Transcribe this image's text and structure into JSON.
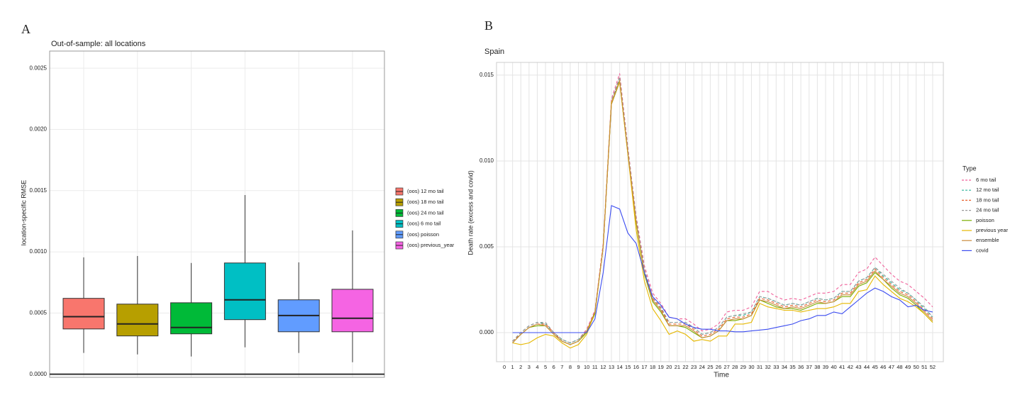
{
  "panels": [
    "A",
    "B"
  ],
  "chart_data": [
    {
      "type": "box",
      "title": "Out-of-sample: all locations",
      "ylabel": "location-specific RMSE",
      "ylim": [
        -2.5e-05,
        0.00264
      ],
      "yticks": [
        {
          "value": 0,
          "label": "0.0000"
        },
        {
          "value": 0.0005,
          "label": "0.0005"
        },
        {
          "value": 0.001,
          "label": "0.0010"
        },
        {
          "value": 0.0015,
          "label": "0.0015"
        },
        {
          "value": 0.002,
          "label": "0.0020"
        },
        {
          "value": 0.0025,
          "label": "0.0025"
        }
      ],
      "grid": true,
      "series": [
        {
          "name": "(oos) 12 mo tail",
          "color": "#f8766d",
          "low": 0.000174,
          "q1": 0.00037,
          "median": 0.00047,
          "q3": 0.00062,
          "high": 0.000955
        },
        {
          "name": "(oos) 18 mo tail",
          "color": "#b79f00",
          "low": 0.000162,
          "q1": 0.000313,
          "median": 0.000411,
          "q3": 0.000573,
          "high": 0.000966
        },
        {
          "name": "(oos) 24 mo tail",
          "color": "#00ba38",
          "low": 0.000145,
          "q1": 0.00033,
          "median": 0.000382,
          "q3": 0.000584,
          "high": 0.000909
        },
        {
          "name": "(oos) 6 mo tail",
          "color": "#00bfc4",
          "low": 0.00022,
          "q1": 0.000446,
          "median": 0.000608,
          "q3": 0.000909,
          "high": 0.001464
        },
        {
          "name": "(oos) poisson",
          "color": "#619cff",
          "low": 0.000174,
          "q1": 0.000347,
          "median": 0.00048,
          "q3": 0.000608,
          "high": 0.000914
        },
        {
          "name": "(oos) previous_year",
          "color": "#f564e3",
          "low": 9.84e-05,
          "q1": 0.000347,
          "median": 0.000457,
          "q3": 0.000694,
          "high": 0.001175
        }
      ]
    },
    {
      "type": "line",
      "title": "Spain",
      "xlabel": "Time",
      "ylabel": "Death rate (excess and covid)",
      "legend_title": "Type",
      "xlim": [
        -0.95,
        53.3
      ],
      "ylim": [
        -0.001694,
        0.01574
      ],
      "xticks": [
        0,
        1,
        2,
        3,
        4,
        5,
        6,
        7,
        8,
        9,
        10,
        11,
        12,
        13,
        14,
        15,
        16,
        17,
        18,
        19,
        20,
        21,
        22,
        23,
        24,
        25,
        26,
        27,
        28,
        29,
        30,
        31,
        32,
        33,
        34,
        35,
        36,
        37,
        38,
        39,
        40,
        41,
        42,
        43,
        44,
        45,
        46,
        47,
        48,
        49,
        50,
        51,
        52
      ],
      "yticks": [
        {
          "value": 0,
          "label": "0.000"
        },
        {
          "value": 0.005,
          "label": "0.005"
        },
        {
          "value": 0.01,
          "label": "0.010"
        },
        {
          "value": 0.015,
          "label": "0.015"
        }
      ],
      "grid": true,
      "x": [
        1,
        2,
        3,
        4,
        5,
        6,
        7,
        8,
        9,
        10,
        11,
        12,
        13,
        14,
        15,
        16,
        17,
        18,
        19,
        20,
        21,
        22,
        23,
        24,
        25,
        26,
        27,
        28,
        29,
        30,
        31,
        32,
        33,
        34,
        35,
        36,
        37,
        38,
        39,
        40,
        41,
        42,
        43,
        44,
        45,
        46,
        47,
        48,
        49,
        50,
        51,
        52
      ],
      "series": [
        {
          "name": "6 mo tail",
          "color": "#f0609a",
          "dashed": true,
          "values": [
            -0.0005,
            0,
            0.0004,
            0.0006,
            0.0005,
            0,
            -0.0004,
            -0.0006,
            -0.0004,
            0.0002,
            0.0013,
            0.0052,
            0.0136,
            0.0151,
            0.0108,
            0.0068,
            0.0039,
            0.0023,
            0.0017,
            0.0009,
            0.0008,
            0.0008,
            0.0005,
            0.0001,
            0.0002,
            0.0005,
            0.0012,
            0.0013,
            0.0013,
            0.0015,
            0.0024,
            0.0024,
            0.0021,
            0.0019,
            0.002,
            0.0019,
            0.0021,
            0.0023,
            0.0023,
            0.0024,
            0.0028,
            0.0028,
            0.0035,
            0.0037,
            0.0044,
            0.0039,
            0.0034,
            0.003,
            0.0028,
            0.0024,
            0.002,
            0.0015
          ]
        },
        {
          "name": "12 mo tail",
          "color": "#2fb39a",
          "dashed": true,
          "values": [
            -0.0005,
            0,
            0.0004,
            0.0006,
            0.0005,
            0,
            -0.0004,
            -0.0006,
            -0.0004,
            0.0001,
            0.0012,
            0.005,
            0.0134,
            0.0148,
            0.0106,
            0.0066,
            0.0036,
            0.002,
            0.0014,
            0.0006,
            0.0006,
            0.0006,
            0.0003,
            -0.0001,
            0,
            0.0003,
            0.0009,
            0.001,
            0.001,
            0.0012,
            0.0021,
            0.002,
            0.0018,
            0.0016,
            0.0017,
            0.0016,
            0.0018,
            0.002,
            0.0019,
            0.002,
            0.0024,
            0.0024,
            0.003,
            0.0032,
            0.0038,
            0.0033,
            0.0029,
            0.0025,
            0.0023,
            0.0019,
            0.0014,
            0.0009
          ]
        },
        {
          "name": "18 mo tail",
          "color": "#e8602c",
          "dashed": true,
          "values": [
            -0.0005,
            -0.0001,
            0.0003,
            0.0005,
            0.0005,
            0,
            -0.0005,
            -0.0007,
            -0.0005,
            0.0001,
            0.0012,
            0.005,
            0.0134,
            0.0149,
            0.0107,
            0.0066,
            0.0036,
            0.002,
            0.0014,
            0.0005,
            0.0005,
            0.0005,
            0.0002,
            -0.0002,
            -0.0001,
            0.0002,
            0.0008,
            0.0009,
            0.0009,
            0.0011,
            0.002,
            0.0019,
            0.0017,
            0.0015,
            0.0016,
            0.0015,
            0.0017,
            0.0019,
            0.0018,
            0.0019,
            0.0023,
            0.0023,
            0.0029,
            0.0031,
            0.0037,
            0.0032,
            0.0028,
            0.0024,
            0.0022,
            0.0018,
            0.0013,
            0.0008
          ]
        },
        {
          "name": "24 mo tail",
          "color": "#999999",
          "dashed": true,
          "values": [
            -0.0005,
            0,
            0.0004,
            0.0006,
            0.0006,
            0,
            -0.0004,
            -0.0006,
            -0.0004,
            0.0001,
            0.0012,
            0.005,
            0.0135,
            0.0149,
            0.0107,
            0.0067,
            0.0037,
            0.0021,
            0.0015,
            0.0006,
            0.0006,
            0.0006,
            0.0003,
            -0.0001,
            0,
            0.0003,
            0.0009,
            0.001,
            0.0011,
            0.0012,
            0.0021,
            0.002,
            0.0018,
            0.0016,
            0.0017,
            0.0016,
            0.0018,
            0.002,
            0.0019,
            0.002,
            0.0024,
            0.0024,
            0.003,
            0.0032,
            0.0038,
            0.0034,
            0.003,
            0.0026,
            0.0023,
            0.0019,
            0.0015,
            0.0009
          ]
        },
        {
          "name": "poisson",
          "color": "#7cae00",
          "dashed": false,
          "values": [
            -0.0006,
            -0.0001,
            0.0003,
            0.0004,
            0.0004,
            -0.0001,
            -0.0005,
            -0.0007,
            -0.0005,
            0,
            0.0011,
            0.005,
            0.0133,
            0.0146,
            0.0104,
            0.0064,
            0.0034,
            0.0018,
            0.0012,
            0.0004,
            0.0004,
            0.0003,
            0,
            -0.0003,
            -0.0002,
            0.0001,
            0.0007,
            0.0007,
            0.0008,
            0.001,
            0.0019,
            0.0017,
            0.0015,
            0.0014,
            0.0014,
            0.0013,
            0.0015,
            0.0017,
            0.0017,
            0.0018,
            0.0021,
            0.0021,
            0.0027,
            0.0029,
            0.0035,
            0.0031,
            0.0026,
            0.0022,
            0.002,
            0.0016,
            0.0011,
            0.0006
          ]
        },
        {
          "name": "previous year",
          "color": "#e6b800",
          "dashed": false,
          "values": [
            -0.0006,
            -0.0007,
            -0.0006,
            -0.0003,
            -0.0001,
            -0.0002,
            -0.0006,
            -0.0009,
            -0.0007,
            -0.0001,
            0.0012,
            0.005,
            0.0134,
            0.0146,
            0.0104,
            0.006,
            0.003,
            0.0014,
            0.0007,
            -0.0001,
            0.0001,
            -0.0001,
            -0.0005,
            -0.0004,
            -0.0005,
            -0.0002,
            -0.0002,
            0.0005,
            0.0005,
            0.0006,
            0.0017,
            0.0015,
            0.0014,
            0.0013,
            0.0013,
            0.0012,
            0.0013,
            0.0014,
            0.0014,
            0.0015,
            0.0017,
            0.0017,
            0.0024,
            0.0025,
            0.0033,
            0.0028,
            0.0024,
            0.002,
            0.0018,
            0.0015,
            0.0011,
            0.0006
          ]
        },
        {
          "name": "ensemble",
          "color": "#c98b3c",
          "dashed": false,
          "values": [
            -0.0006,
            -0.0001,
            0.0003,
            0.0005,
            0.0004,
            -0.0001,
            -0.0005,
            -0.0007,
            -0.0005,
            0.0001,
            0.0012,
            0.005,
            0.0133,
            0.0147,
            0.0105,
            0.0065,
            0.0035,
            0.0019,
            0.0013,
            0.0004,
            0.0004,
            0.0004,
            0.0001,
            -0.0003,
            -0.0002,
            0.0001,
            0.0007,
            0.0008,
            0.0008,
            0.001,
            0.0019,
            0.0018,
            0.0016,
            0.0014,
            0.0015,
            0.0014,
            0.0016,
            0.0018,
            0.0017,
            0.0018,
            0.0022,
            0.0022,
            0.0028,
            0.003,
            0.0036,
            0.0031,
            0.0027,
            0.0023,
            0.0021,
            0.0017,
            0.0012,
            0.0007
          ]
        },
        {
          "name": "covid",
          "color": "#3b4cf0",
          "dashed": false,
          "values": [
            0,
            0,
            0,
            0,
            0,
            0,
            0,
            0,
            0,
            0,
            0.0008,
            0.0035,
            0.0074,
            0.0072,
            0.0058,
            0.0052,
            0.0035,
            0.0021,
            0.0016,
            0.0009,
            0.0008,
            0.0005,
            0.0003,
            0.0002,
            0.0002,
            0.0001,
            0.0001,
            5e-05,
            5e-05,
            0.0001,
            0.00015,
            0.0002,
            0.0003,
            0.0004,
            0.0005,
            0.0007,
            0.0008,
            0.001,
            0.001,
            0.0012,
            0.0011,
            0.0015,
            0.0019,
            0.0023,
            0.0026,
            0.0024,
            0.0021,
            0.0019,
            0.0015,
            0.0016,
            0.0013,
            0.0012
          ]
        }
      ]
    }
  ]
}
